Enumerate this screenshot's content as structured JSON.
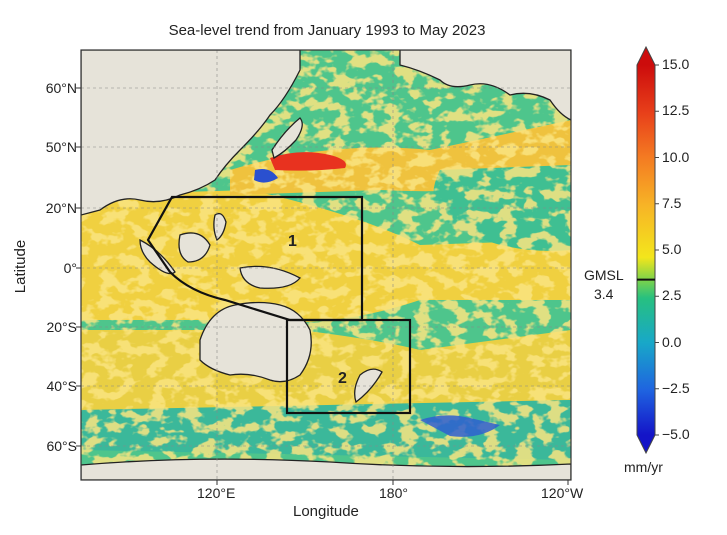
{
  "title": "Sea-level trend from January 1993 to May 2023",
  "xlabel": "Longitude",
  "ylabel": "Latitude",
  "lat_ticks": [
    "60°N",
    "50°N",
    "20°N",
    "0°",
    "20°S",
    "40°S",
    "60°S"
  ],
  "lon_ticks": [
    "120°E",
    "180°",
    "120°W"
  ],
  "regions": [
    {
      "label": "1"
    },
    {
      "label": "2"
    }
  ],
  "colorbar": {
    "ticks": [
      "15.0",
      "12.5",
      "10.0",
      "7.5",
      "5.0",
      "2.5",
      "0.0",
      "−2.5",
      "−5.0"
    ],
    "min": -5.0,
    "max": 15.0,
    "unit": "mm/yr",
    "marker_label": "GMSL",
    "marker_value": "3.4",
    "marker_level": 3.4
  },
  "colors": {
    "land": "#e6e3d9",
    "ocean_base": "#5cc58b",
    "warm": "#f5c33b",
    "hot": "#e63b22",
    "cold": "#2a55c9",
    "cb_low": "#1a1ad0",
    "cb_high": "#d01010"
  }
}
